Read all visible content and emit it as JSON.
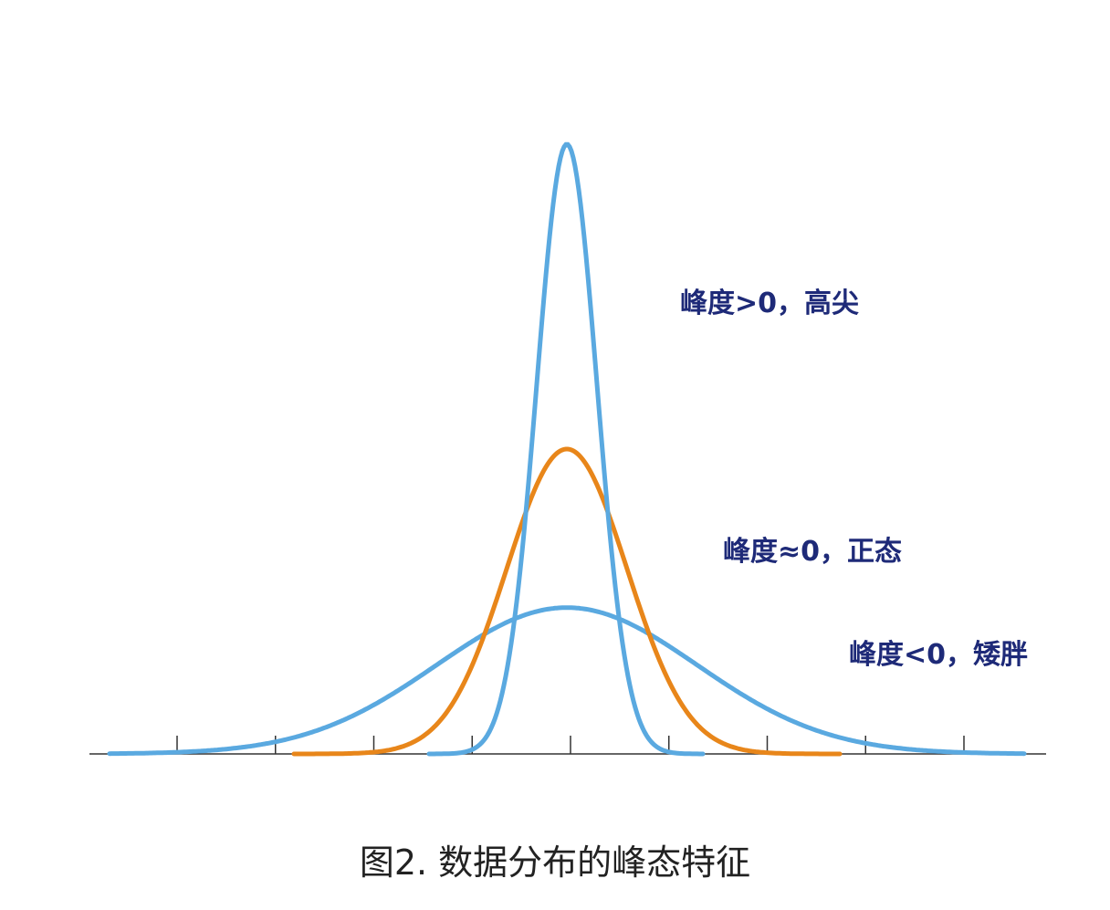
{
  "caption": "图2. 数据分布的峰态特征",
  "colors": {
    "label_text": "#1e2a78",
    "axis": "#333333",
    "peaked_curve": "#5aa9e0",
    "normal_curve": "#e8861a",
    "flat_curve": "#5aa9e0"
  },
  "chart_data": {
    "type": "line",
    "x_axis": {
      "ticks": 9,
      "tick_labels": []
    },
    "series": [
      {
        "key": "peaked",
        "label": "峰度>0，高尖",
        "color_key": "peaked_curve",
        "peak": 1.0,
        "spread": 0.6
      },
      {
        "key": "normal",
        "label": "峰度≈0，正态",
        "color_key": "normal_curve",
        "peak": 0.5,
        "spread": 1.2
      },
      {
        "key": "flat",
        "label": "峰度<0，矮胖",
        "color_key": "flat_curve",
        "peak": 0.24,
        "spread": 2.6
      }
    ]
  }
}
